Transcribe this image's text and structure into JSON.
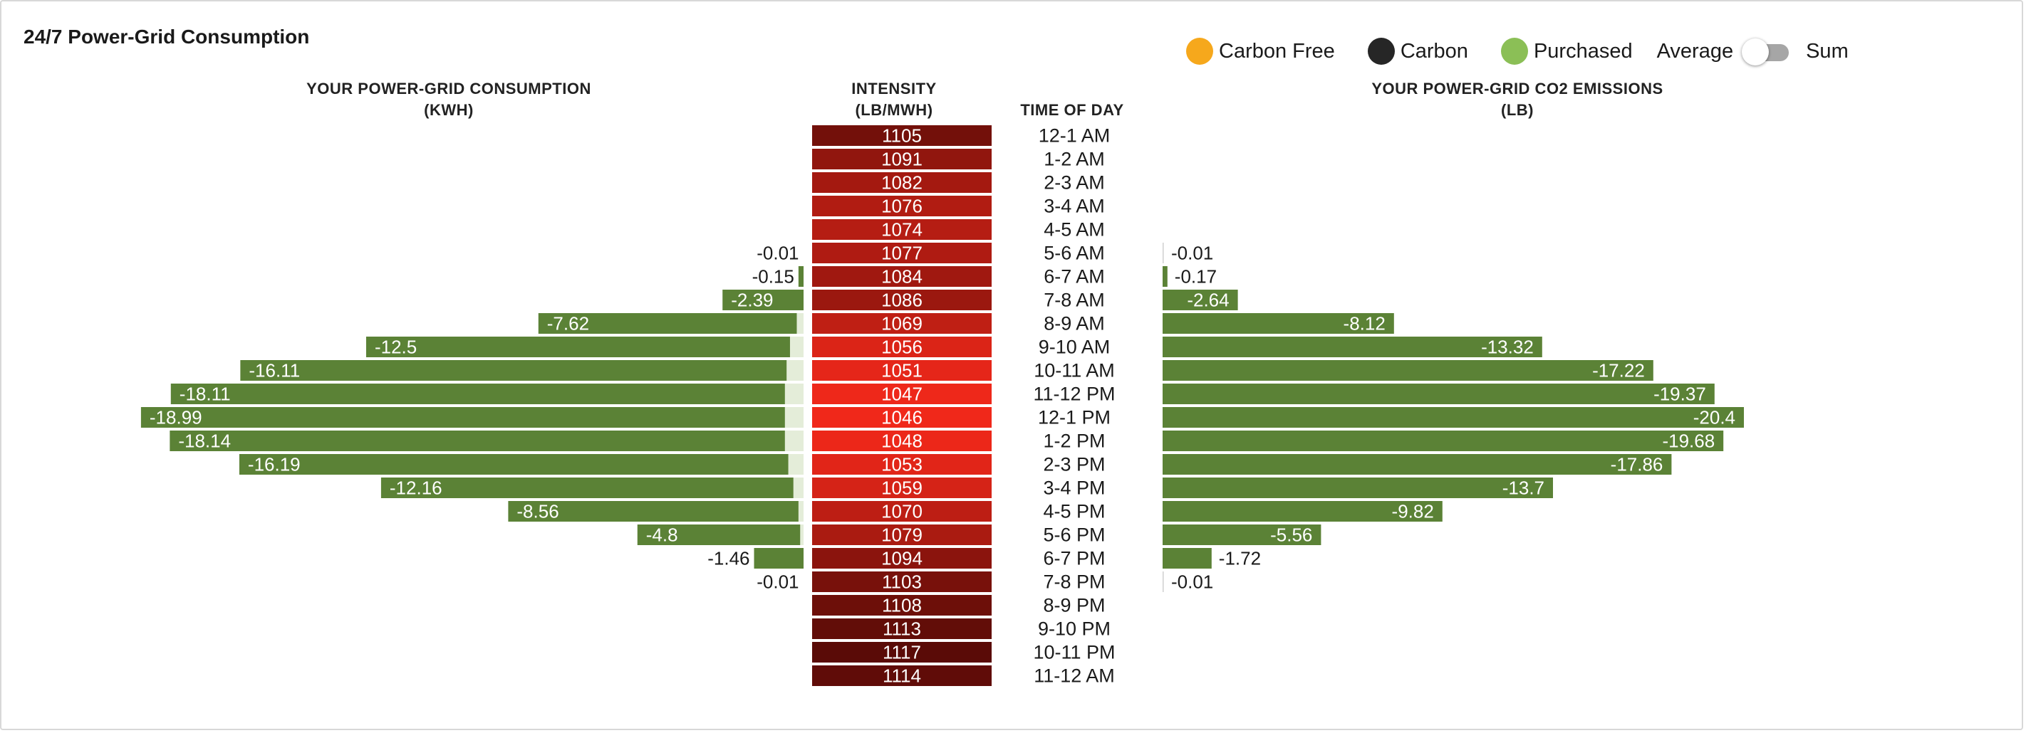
{
  "title": "24/7 Power-Grid Consumption",
  "legend": {
    "items": [
      {
        "label": "Carbon Free",
        "color": "#f6a81c",
        "icon": "carbon-free-dot"
      },
      {
        "label": "Carbon",
        "color": "#262626",
        "icon": "carbon-dot"
      },
      {
        "label": "Purchased",
        "color": "#8bbf56",
        "icon": "purchased-dot"
      }
    ],
    "toggle_left_label": "Average",
    "toggle_right_label": "Sum",
    "toggle_state": "Average"
  },
  "headers": {
    "consumption_line1": "YOUR POWER-GRID CONSUMPTION",
    "consumption_line2": "(KWH)",
    "intensity_line1": "INTENSITY",
    "intensity_line2": "(LB/MWH)",
    "time": "TIME OF DAY",
    "emissions_line1": "YOUR POWER-GRID CO2 EMISSIONS",
    "emissions_line2": "(LB)"
  },
  "colors": {
    "bar_green": "#5b8236",
    "bar_light": "#e4edd9",
    "intensity_low": "#f0281a",
    "intensity_high": "#5a0b07",
    "bar_text": "#ffffff"
  },
  "chart_data": {
    "type": "bar",
    "layout": "butterfly",
    "categories": [
      "12-1 AM",
      "1-2 AM",
      "2-3 AM",
      "3-4 AM",
      "4-5 AM",
      "5-6 AM",
      "6-7 AM",
      "7-8 AM",
      "8-9 AM",
      "9-10 AM",
      "10-11 AM",
      "11-12 PM",
      "12-1 PM",
      "1-2 PM",
      "2-3 PM",
      "3-4 PM",
      "4-5 PM",
      "5-6 PM",
      "6-7 PM",
      "7-8 PM",
      "8-9 PM",
      "9-10 PM",
      "10-11 PM",
      "11-12 AM"
    ],
    "intensity": [
      1105,
      1091,
      1082,
      1076,
      1074,
      1077,
      1084,
      1086,
      1069,
      1056,
      1051,
      1047,
      1046,
      1048,
      1053,
      1059,
      1070,
      1079,
      1094,
      1103,
      1108,
      1113,
      1117,
      1114
    ],
    "consumption_kwh": [
      null,
      null,
      null,
      null,
      null,
      -0.01,
      -0.15,
      -2.39,
      -7.62,
      -12.5,
      -16.11,
      -18.11,
      -18.99,
      -18.14,
      -16.19,
      -12.16,
      -8.56,
      -4.8,
      -1.46,
      -0.01,
      null,
      null,
      null,
      null
    ],
    "consumption_light_kwh": [
      null,
      null,
      null,
      null,
      null,
      0,
      0,
      0,
      0.2,
      0.4,
      0.5,
      0.55,
      0.55,
      0.55,
      0.45,
      0.3,
      0.15,
      0.1,
      0,
      0,
      null,
      null,
      null,
      null
    ],
    "emissions_lb": [
      null,
      null,
      null,
      null,
      null,
      -0.01,
      -0.17,
      -2.64,
      -8.12,
      -13.32,
      -17.22,
      -19.37,
      -20.4,
      -19.68,
      -17.86,
      -13.7,
      -9.82,
      -5.56,
      -1.72,
      -0.01,
      null,
      null,
      null,
      null
    ]
  }
}
